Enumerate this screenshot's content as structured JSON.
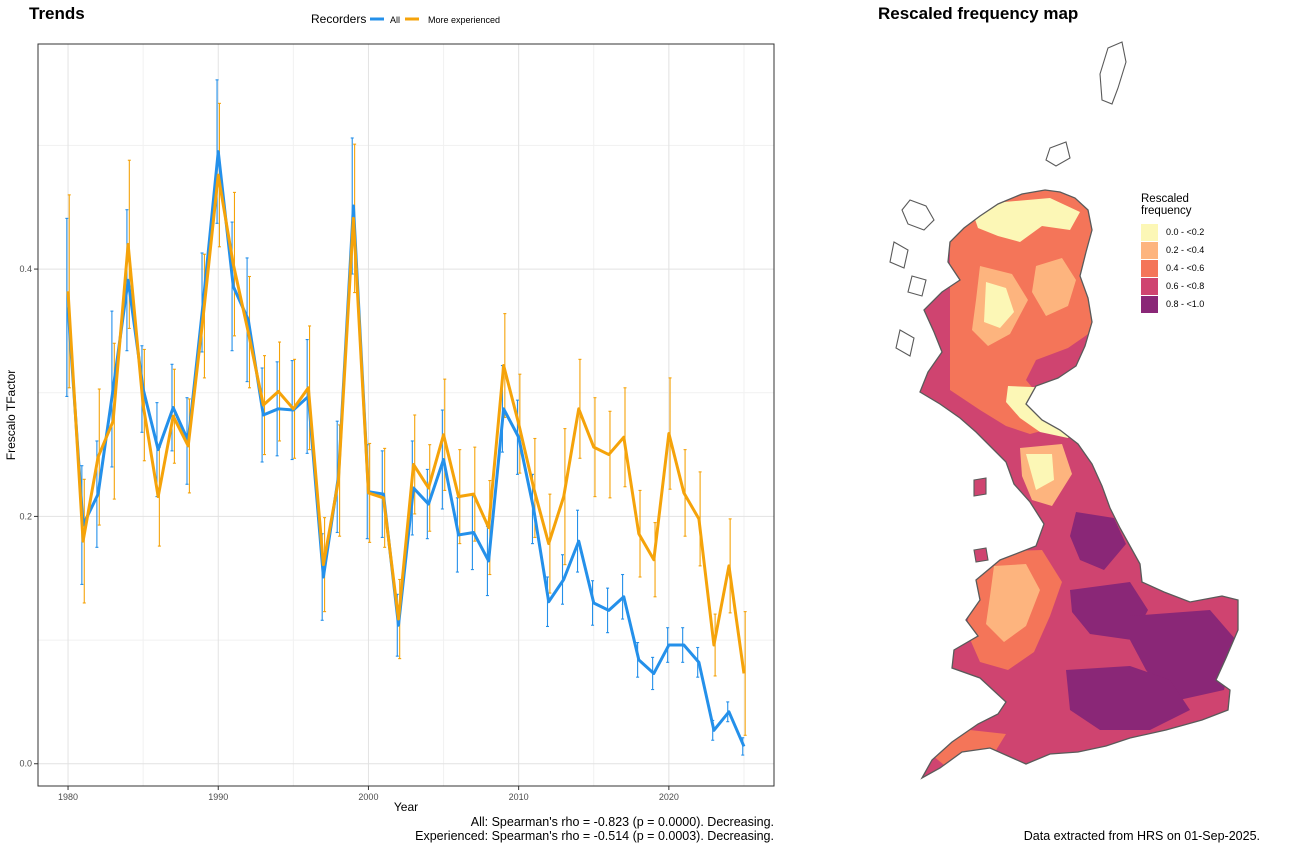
{
  "panels": {
    "trends_title": "Trends",
    "map_title": "Rescaled frequency map"
  },
  "chart_data": {
    "type": "line",
    "title": "Trends",
    "xlabel": "Year",
    "ylabel": "Frescalo TFactor",
    "xlim": [
      1978,
      2027
    ],
    "ylim": [
      -0.018,
      0.582
    ],
    "x_ticks": [
      1980,
      1990,
      2000,
      2010,
      2020
    ],
    "y_ticks": [
      0.0,
      0.2,
      0.4
    ],
    "y_tick_labels": [
      "0.0",
      "0.2",
      "0.4"
    ],
    "grid": true,
    "legend": {
      "title": "Recorders",
      "position": "top"
    },
    "x": [
      1980,
      1981,
      1982,
      1983,
      1984,
      1985,
      1986,
      1987,
      1988,
      1989,
      1990,
      1991,
      1992,
      1993,
      1994,
      1995,
      1996,
      1997,
      1998,
      1999,
      2000,
      2001,
      2002,
      2003,
      2004,
      2005,
      2006,
      2007,
      2008,
      2009,
      2010,
      2011,
      2012,
      2013,
      2014,
      2015,
      2016,
      2017,
      2018,
      2019,
      2020,
      2021,
      2022,
      2023,
      2024,
      2025
    ],
    "series": [
      {
        "name": "All",
        "color": "#2490ea",
        "values": [
          0.369,
          0.193,
          0.218,
          0.303,
          0.391,
          0.303,
          0.254,
          0.288,
          0.261,
          0.373,
          0.495,
          0.386,
          0.359,
          0.282,
          0.287,
          0.286,
          0.297,
          0.151,
          0.232,
          0.451,
          0.22,
          0.218,
          0.112,
          0.223,
          0.21,
          0.246,
          0.185,
          0.187,
          0.164,
          0.287,
          0.264,
          0.206,
          0.131,
          0.149,
          0.18,
          0.13,
          0.124,
          0.135,
          0.084,
          0.073,
          0.096,
          0.096,
          0.082,
          0.027,
          0.042,
          0.014
        ],
        "error": [
          0.072,
          0.048,
          0.043,
          0.063,
          0.057,
          0.035,
          0.038,
          0.035,
          0.035,
          0.04,
          0.058,
          0.052,
          0.05,
          0.038,
          0.038,
          0.04,
          0.046,
          0.035,
          0.045,
          0.055,
          0.038,
          0.035,
          0.025,
          0.038,
          0.028,
          0.04,
          0.03,
          0.03,
          0.028,
          0.035,
          0.03,
          0.028,
          0.02,
          0.02,
          0.025,
          0.018,
          0.018,
          0.018,
          0.014,
          0.013,
          0.014,
          0.014,
          0.012,
          0.008,
          0.008,
          0.007
        ]
      },
      {
        "name": "More experienced",
        "color": "#f5a30a",
        "values": [
          0.382,
          0.18,
          0.248,
          0.277,
          0.42,
          0.29,
          0.216,
          0.281,
          0.257,
          0.362,
          0.476,
          0.404,
          0.349,
          0.29,
          0.301,
          0.287,
          0.304,
          0.161,
          0.229,
          0.441,
          0.219,
          0.215,
          0.117,
          0.242,
          0.223,
          0.266,
          0.216,
          0.218,
          0.191,
          0.322,
          0.275,
          0.223,
          0.178,
          0.216,
          0.287,
          0.256,
          0.25,
          0.264,
          0.186,
          0.165,
          0.267,
          0.219,
          0.198,
          0.096,
          0.16,
          0.073
        ],
        "error": [
          0.078,
          0.05,
          0.055,
          0.063,
          0.068,
          0.045,
          0.04,
          0.038,
          0.038,
          0.05,
          0.058,
          0.058,
          0.045,
          0.04,
          0.04,
          0.04,
          0.05,
          0.038,
          0.045,
          0.06,
          0.04,
          0.04,
          0.032,
          0.04,
          0.035,
          0.045,
          0.038,
          0.038,
          0.038,
          0.042,
          0.04,
          0.04,
          0.04,
          0.055,
          0.04,
          0.04,
          0.035,
          0.04,
          0.035,
          0.03,
          0.045,
          0.035,
          0.038,
          0.025,
          0.038,
          0.05
        ]
      }
    ]
  },
  "stats": {
    "all": "All: Spearman's rho = -0.823 (p = 0.0000). Decreasing.",
    "experienced": "Experienced: Spearman's rho = -0.514 (p = 0.0003). Decreasing."
  },
  "map": {
    "legend_title_1": "Rescaled",
    "legend_title_2": "frequency",
    "legend": [
      {
        "label": "0.0 - <0.2",
        "color": "#fcf7b6"
      },
      {
        "label": "0.2 - <0.4",
        "color": "#fdb47e"
      },
      {
        "label": "0.4 - <0.6",
        "color": "#f47559"
      },
      {
        "label": "0.6 - <0.8",
        "color": "#cf4470"
      },
      {
        "label": "0.8 - <1.0",
        "color": "#8a2777"
      }
    ],
    "outline_color": "#5a5a5a"
  },
  "footer": "Data extracted from HRS on 01-Sep-2025."
}
